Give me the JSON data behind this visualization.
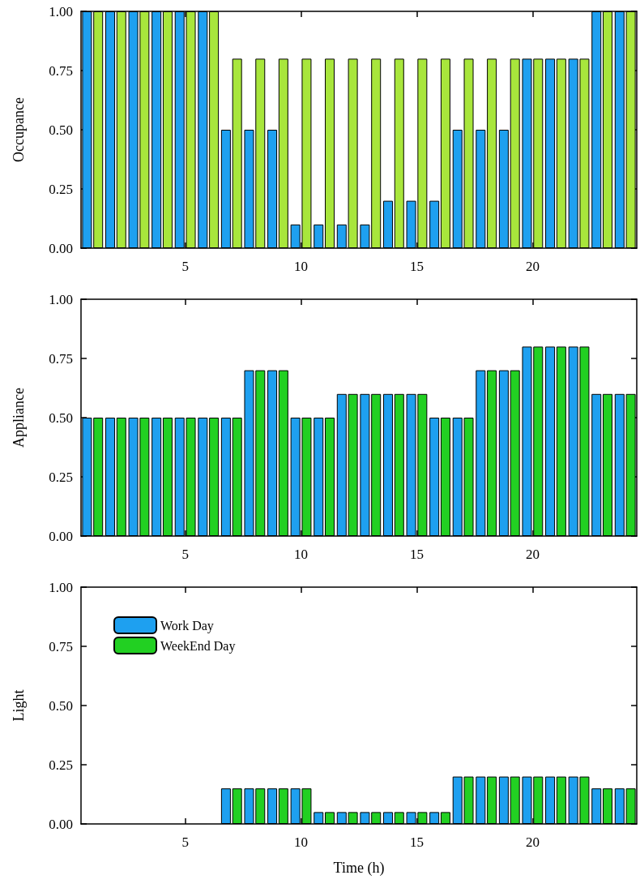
{
  "chart_data": [
    {
      "type": "bar",
      "ylabel": "Occupance",
      "x": [
        1,
        2,
        3,
        4,
        5,
        6,
        7,
        8,
        9,
        10,
        11,
        12,
        13,
        14,
        15,
        16,
        17,
        18,
        19,
        20,
        21,
        22,
        23,
        24
      ],
      "xlim": [
        0.5,
        24.5
      ],
      "xticks": [
        5,
        10,
        15,
        20
      ],
      "ylim": [
        0,
        1
      ],
      "yticks": [
        {
          "value": 0,
          "label": "0.00"
        },
        {
          "value": 0.25,
          "label": "0.25"
        },
        {
          "value": 0.5,
          "label": "0.50"
        },
        {
          "value": 0.75,
          "label": "0.75"
        },
        {
          "value": 1,
          "label": "1.00"
        }
      ],
      "series": [
        {
          "color": "#1ea0f0",
          "values": [
            1,
            1,
            1,
            1,
            1,
            1,
            0.5,
            0.5,
            0.5,
            0.1,
            0.1,
            0.1,
            0.1,
            0.2,
            0.2,
            0.2,
            0.5,
            0.5,
            0.5,
            0.8,
            0.8,
            0.8,
            1,
            1
          ]
        },
        {
          "color": "#a8e63c",
          "values": [
            1,
            1,
            1,
            1,
            1,
            1,
            0.8,
            0.8,
            0.8,
            0.8,
            0.8,
            0.8,
            0.8,
            0.8,
            0.8,
            0.8,
            0.8,
            0.8,
            0.8,
            0.8,
            0.8,
            0.8,
            1,
            1
          ]
        }
      ]
    },
    {
      "type": "bar",
      "ylabel": "Appliance",
      "x": [
        1,
        2,
        3,
        4,
        5,
        6,
        7,
        8,
        9,
        10,
        11,
        12,
        13,
        14,
        15,
        16,
        17,
        18,
        19,
        20,
        21,
        22,
        23,
        24
      ],
      "xlim": [
        0.5,
        24.5
      ],
      "xticks": [
        5,
        10,
        15,
        20
      ],
      "ylim": [
        0,
        1
      ],
      "yticks": [
        {
          "value": 0,
          "label": "0.00"
        },
        {
          "value": 0.25,
          "label": "0.25"
        },
        {
          "value": 0.5,
          "label": "0.50"
        },
        {
          "value": 0.75,
          "label": "0.75"
        },
        {
          "value": 1,
          "label": "1.00"
        }
      ],
      "series": [
        {
          "color": "#1ea0f0",
          "values": [
            0.5,
            0.5,
            0.5,
            0.5,
            0.5,
            0.5,
            0.5,
            0.7,
            0.7,
            0.5,
            0.5,
            0.6,
            0.6,
            0.6,
            0.6,
            0.5,
            0.5,
            0.7,
            0.7,
            0.8,
            0.8,
            0.8,
            0.6,
            0.6
          ]
        },
        {
          "color": "#22d022",
          "values": [
            0.5,
            0.5,
            0.5,
            0.5,
            0.5,
            0.5,
            0.5,
            0.7,
            0.7,
            0.5,
            0.5,
            0.6,
            0.6,
            0.6,
            0.6,
            0.5,
            0.5,
            0.7,
            0.7,
            0.8,
            0.8,
            0.8,
            0.6,
            0.6
          ]
        }
      ]
    },
    {
      "type": "bar",
      "ylabel": "Light",
      "xlabel": "Time (h)",
      "legend": "top left",
      "x": [
        1,
        2,
        3,
        4,
        5,
        6,
        7,
        8,
        9,
        10,
        11,
        12,
        13,
        14,
        15,
        16,
        17,
        18,
        19,
        20,
        21,
        22,
        23,
        24
      ],
      "xlim": [
        0.5,
        24.5
      ],
      "xticks": [
        5,
        10,
        15,
        20
      ],
      "ylim": [
        0,
        1
      ],
      "yticks": [
        {
          "value": 0,
          "label": "0.00"
        },
        {
          "value": 0.25,
          "label": "0.25"
        },
        {
          "value": 0.5,
          "label": "0.50"
        },
        {
          "value": 0.75,
          "label": "0.75"
        },
        {
          "value": 1,
          "label": "1.00"
        }
      ],
      "series": [
        {
          "name": "Work Day",
          "color": "#1ea0f0",
          "values": [
            0,
            0,
            0,
            0,
            0,
            0,
            0.15,
            0.15,
            0.15,
            0.15,
            0.05,
            0.05,
            0.05,
            0.05,
            0.05,
            0.05,
            0.2,
            0.2,
            0.2,
            0.2,
            0.2,
            0.2,
            0.15,
            0.15
          ]
        },
        {
          "name": "WeekEnd Day",
          "color": "#22d022",
          "values": [
            0,
            0,
            0,
            0,
            0,
            0,
            0.15,
            0.15,
            0.15,
            0.15,
            0.05,
            0.05,
            0.05,
            0.05,
            0.05,
            0.05,
            0.2,
            0.2,
            0.2,
            0.2,
            0.2,
            0.2,
            0.15,
            0.15
          ]
        }
      ]
    }
  ]
}
